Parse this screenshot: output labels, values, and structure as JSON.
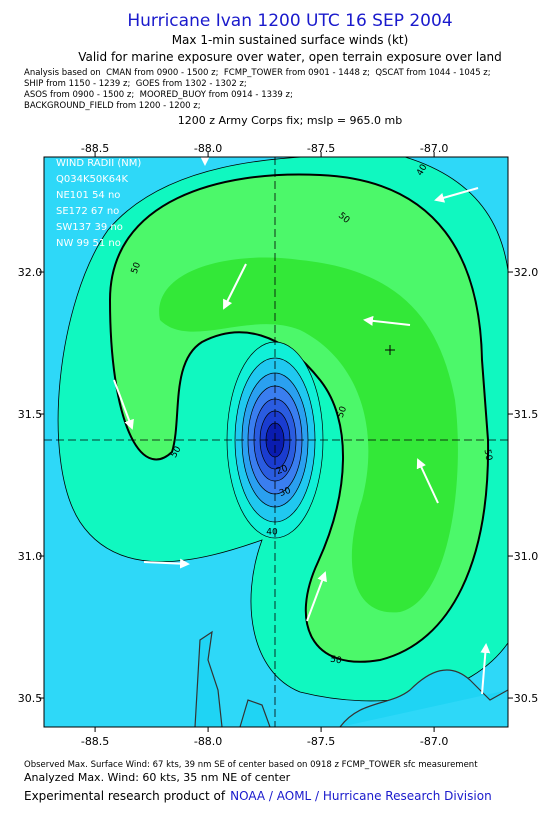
{
  "header": {
    "title": "Hurricane Ivan 1200 UTC 16 SEP 2004",
    "subtitle": "Max 1-min sustained surface winds (kt)",
    "validity": "Valid for marine exposure over water, open terrain exposure over land",
    "analysis": [
      "Analysis based on  CMAN from 0900 - 1500 z;  FCMP_TOWER from 0901 - 1448 z;  QSCAT from 1044 - 1045 z;",
      "SHIP from 1150 - 1239 z;  GOES from 1302 - 1302 z;",
      "ASOS from 0900 - 1500 z;  MOORED_BUOY from 0914 - 1339 z;",
      "BACKGROUND_FIELD from 1200 - 1200 z;"
    ],
    "fix": "1200 z Army Corps fix; mslp = 965.0 mb"
  },
  "map": {
    "xlim": [
      -88.726,
      -86.673
    ],
    "ylim": [
      30.398,
      32.405
    ],
    "xticks": [
      -88.5,
      {
        "value": -88,
        "label": "-88.0"
      },
      -87.5,
      {
        "value": -87,
        "label": "-87.0"
      }
    ],
    "yticks": [
      {
        "value": 32,
        "label": "32.0"
      },
      31.5,
      {
        "value": 31,
        "label": "31.0"
      },
      30.5
    ],
    "contour_labels": [
      40,
      50,
      50,
      50,
      50,
      50,
      20,
      30,
      40,
      50
    ],
    "wind_radii": {
      "title": "WIND RADII (NM)",
      "header": "Q034K50K64K",
      "rows": [
        "NE101 54 no",
        "SE172 67 no",
        "SW137 39 no",
        "NW 99 51 no"
      ]
    }
  },
  "footer": {
    "observed": "Observed Max. Surface Wind: 67 kts, 39 nm SE of center based on 0918 z FCMP_TOWER sfc measurement",
    "analyzed": "Analyzed Max. Wind: 60 kts, 35 nm NE of center",
    "credit": "Experimental research product of",
    "agency": "NOAA / AOML / Hurricane Research Division"
  }
}
